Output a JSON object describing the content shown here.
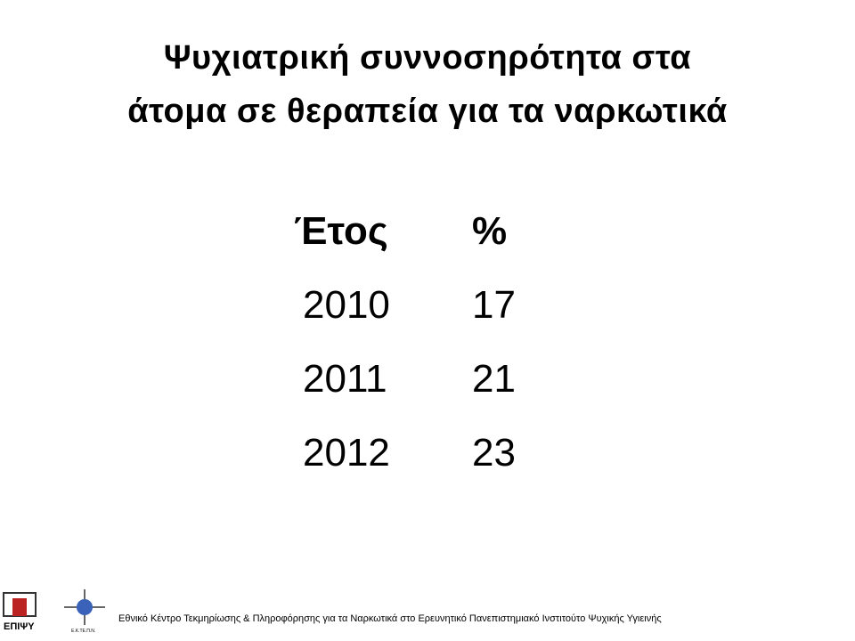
{
  "title": {
    "line1": "Ψυχιατρική συννοσηρότητα στα",
    "line2": "άτομα σε θεραπεία για τα ναρκωτικά"
  },
  "table": {
    "header": [
      "Έτος",
      "%"
    ],
    "rows": [
      [
        2010,
        17
      ],
      [
        2011,
        21
      ],
      [
        2012,
        23
      ]
    ]
  },
  "logos": {
    "left": "ΕΠΙΨΥ",
    "right": "Ε.Κ.ΤΕ.Π.Ν."
  },
  "footer": "Εθνικό Κέντρο Τεκμηρίωσης & Πληροφόρησης για τα Ναρκωτικά στο Ερευνητικό Πανεπιστημιακό Ινστιτούτο Ψυχικής Υγιεινής"
}
